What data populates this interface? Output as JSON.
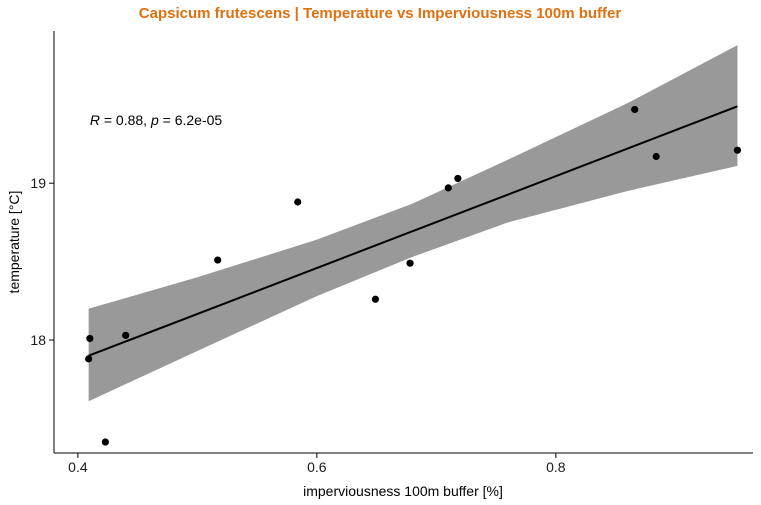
{
  "chart_data": {
    "type": "scatter",
    "title": "Capsicum frutescens | Temperature vs Imperviousness 100m buffer",
    "xlabel": "imperviousness 100m buffer [%]",
    "ylabel": "temperature [°C]",
    "xlim": [
      0.38,
      0.965
    ],
    "ylim": [
      17.28,
      19.97
    ],
    "xticks": [
      0.4,
      0.6,
      0.8
    ],
    "xtick_labels": [
      "0.4",
      "0.6",
      "0.8"
    ],
    "yticks": [
      18,
      19
    ],
    "ytick_labels": [
      "18",
      "19"
    ],
    "grid": false,
    "legend": "none",
    "points": [
      {
        "x": 0.41,
        "y": 18.01
      },
      {
        "x": 0.409,
        "y": 17.88
      },
      {
        "x": 0.44,
        "y": 18.03
      },
      {
        "x": 0.423,
        "y": 17.35
      },
      {
        "x": 0.517,
        "y": 18.51
      },
      {
        "x": 0.584,
        "y": 18.88
      },
      {
        "x": 0.649,
        "y": 18.26
      },
      {
        "x": 0.678,
        "y": 18.49
      },
      {
        "x": 0.71,
        "y": 18.97
      },
      {
        "x": 0.718,
        "y": 19.03
      },
      {
        "x": 0.866,
        "y": 19.47
      },
      {
        "x": 0.884,
        "y": 19.17
      },
      {
        "x": 0.952,
        "y": 19.21
      }
    ],
    "fit_line": {
      "x": [
        0.409,
        0.952
      ],
      "y": [
        17.9,
        19.49
      ]
    },
    "confidence_band": [
      {
        "x": 0.409,
        "lower": 17.61,
        "upper": 18.2
      },
      {
        "x": 0.5,
        "lower": 17.93,
        "upper": 18.4
      },
      {
        "x": 0.6,
        "lower": 18.28,
        "upper": 18.64
      },
      {
        "x": 0.68,
        "lower": 18.53,
        "upper": 18.87
      },
      {
        "x": 0.76,
        "lower": 18.75,
        "upper": 19.15
      },
      {
        "x": 0.86,
        "lower": 18.95,
        "upper": 19.51
      },
      {
        "x": 0.952,
        "lower": 19.11,
        "upper": 19.88
      }
    ],
    "annotation": {
      "r_symbol": "R",
      "r_text": " = 0.88, ",
      "p_symbol": "p",
      "p_text": " = 6.2e-05",
      "x": 0.41,
      "y": 19.37
    },
    "colors": {
      "title": "#e0700f",
      "points": "#000000",
      "fit_line": "#000000",
      "band": "#999999",
      "axis": "#000000"
    }
  }
}
